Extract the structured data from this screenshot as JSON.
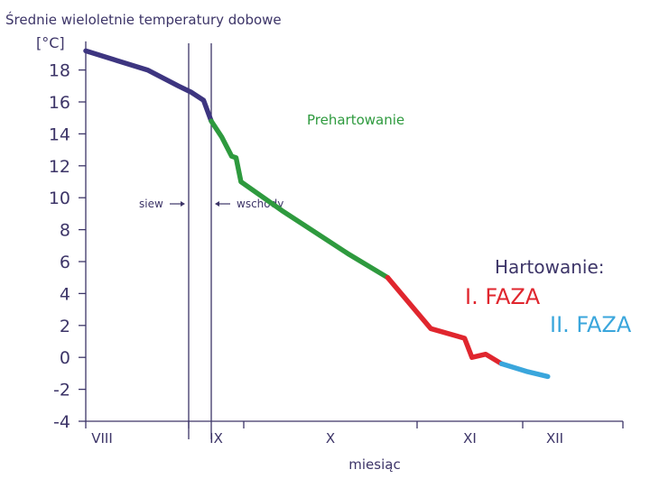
{
  "colors": {
    "axis": "#3d3568",
    "text": "#3d3568",
    "phase_default": "#3d3580",
    "phase_prehardening": "#2e9a3e",
    "phase_hardening_1": "#e0262e",
    "phase_hardening_2": "#3aa6dc"
  },
  "chart_data": {
    "type": "line",
    "title": "Średnie wieloletnie temperatury dobowe",
    "ylabel": "[°C]",
    "xlabel": "miesiąc",
    "ylim": [
      -4,
      19
    ],
    "yticks": [
      -4,
      -2,
      0,
      2,
      4,
      6,
      8,
      10,
      12,
      14,
      16,
      18
    ],
    "x_unit": "months since 1 August",
    "xlim": [
      0,
      5
    ],
    "months": [
      {
        "label": "VIII",
        "start": 0,
        "end": 1
      },
      {
        "label": "IX",
        "start": 1,
        "end": 2
      },
      {
        "label": "X",
        "start": 2,
        "end": 3
      },
      {
        "label": "XI",
        "start": 3,
        "end": 4
      },
      {
        "label": "XII",
        "start": 4,
        "end": 5
      }
    ],
    "series": [
      {
        "phase": "default",
        "color_key": "phase_default",
        "x": [
          0.0,
          0.6,
          0.9,
          1.05,
          1.27,
          1.41
        ],
        "y": [
          19.2,
          18.0,
          17.0,
          16.6,
          16.1,
          14.8
        ]
      },
      {
        "phase": "prehardening",
        "color_key": "phase_prehardening",
        "x": [
          1.41,
          1.6,
          1.78,
          1.86,
          1.95,
          2.22,
          2.6,
          2.83
        ],
        "y": [
          14.8,
          13.8,
          12.6,
          12.5,
          11.0,
          9.2,
          6.5,
          5.0
        ]
      },
      {
        "phase": "hardening_1",
        "color_key": "phase_hardening_1",
        "x": [
          2.83,
          3.13,
          3.45,
          3.52,
          3.65,
          3.8
        ],
        "y": [
          5.0,
          1.8,
          1.2,
          0.0,
          0.2,
          -0.4
        ]
      },
      {
        "phase": "hardening_2",
        "color_key": "phase_hardening_2",
        "x": [
          3.8,
          4.05,
          4.25
        ],
        "y": [
          -0.4,
          -0.9,
          -1.2
        ]
      }
    ],
    "events": [
      {
        "label": "siew",
        "x": 1.0,
        "arrow": "right"
      },
      {
        "label": "wschody",
        "x": 1.41,
        "arrow": "left"
      }
    ],
    "annotations": {
      "prehardening": "Prehartowanie",
      "hardening": "Hartowanie:",
      "phase1": "I. FAZA",
      "phase2": "II. FAZA"
    }
  }
}
